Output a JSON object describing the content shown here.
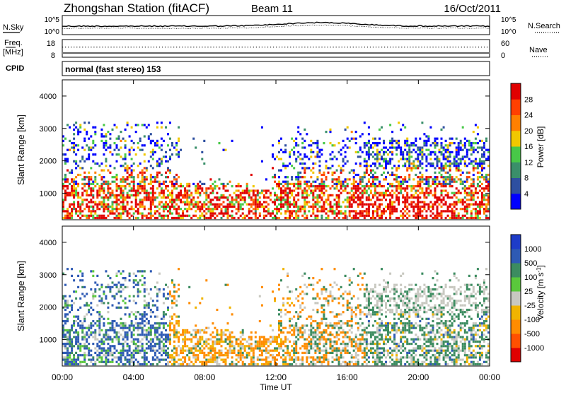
{
  "header": {
    "title": "Zhongshan Station (fitACF)",
    "beam": "Beam 11",
    "date": "16/Oct/2011"
  },
  "noise_panel": {
    "left_label": "N.Sky",
    "right_label": "N.Search",
    "left_ticks": [
      "10^5",
      "10^0"
    ],
    "right_ticks": [
      "10^5",
      "10^0"
    ]
  },
  "freq_panel": {
    "left_label_line1": "Freq.",
    "left_label_line2": "[MHz]",
    "right_label": "Nave",
    "left_ticks": [
      "18",
      "8"
    ],
    "right_ticks": [
      "60",
      "0"
    ]
  },
  "cpid_panel": {
    "label": "CPID",
    "text": "normal (fast stereo) 153"
  },
  "chart_data": [
    {
      "type": "heatmap",
      "title": "",
      "ylabel": "Slant Range [km]",
      "ylim": [
        180,
        4500
      ],
      "yticks": [
        "1000",
        "2000",
        "3000",
        "4000"
      ],
      "colorbar_label": "Power [dB]",
      "colorbar_ticks": [
        "4",
        "8",
        "12",
        "16",
        "20",
        "24",
        "28"
      ],
      "colorbar_colors": [
        "#0000ff",
        "#2e4fa0",
        "#3a8f6a",
        "#48c848",
        "#f0c800",
        "#ff8000",
        "#ff4000",
        "#e00000"
      ]
    },
    {
      "type": "heatmap",
      "title": "",
      "ylabel": "Slant Range [km]",
      "ylim": [
        180,
        4500
      ],
      "yticks": [
        "1000",
        "2000",
        "3000",
        "4000"
      ],
      "colorbar_label": "Velocity [m s^-1]",
      "colorbar_ticks": [
        "1000",
        "500",
        "100",
        "25",
        "-25",
        "-100",
        "-500",
        "-1000"
      ],
      "colorbar_colors": [
        "#1e3cc8",
        "#2e5ab4",
        "#3c8c60",
        "#5ac83c",
        "#c8c8c0",
        "#f0b400",
        "#ff8c00",
        "#ff5000",
        "#e00000"
      ]
    }
  ],
  "time_axis": {
    "label": "Time UT",
    "ticks": [
      "00:00",
      "04:00",
      "08:00",
      "12:00",
      "16:00",
      "20:00",
      "00:00"
    ]
  }
}
